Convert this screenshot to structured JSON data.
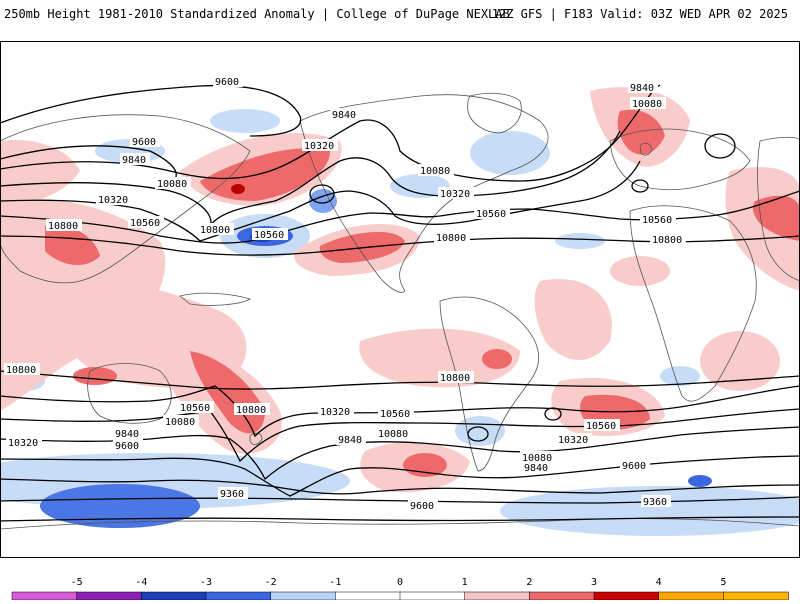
{
  "header": {
    "title_left": "250mb Height 1981-2010 Standardized Anomaly | College of DuPage NEXLAB",
    "title_right": "12Z GFS | F183 Valid: 03Z WED APR 02 2025"
  },
  "map": {
    "land_color": "#ffffff",
    "coast_color": "#555555",
    "contour_color": "#000000",
    "contour_labels": [
      "9600",
      "9600",
      "9840",
      "9840",
      "9840",
      "10080",
      "10080",
      "10320",
      "10320",
      "10560",
      "10560",
      "10560",
      "10800",
      "10800",
      "10800",
      "10320",
      "10560",
      "10800",
      "10800",
      "10800",
      "10560",
      "10080",
      "10320",
      "10560",
      "10800",
      "10320",
      "10080",
      "9840",
      "10080",
      "9840",
      "9600",
      "9600",
      "9840",
      "9360",
      "9600",
      "9360",
      "10560",
      "10320",
      "10080"
    ]
  },
  "colorbar": {
    "ticks": [
      "-5",
      "-4",
      "-3",
      "-2",
      "-1",
      "0",
      "1",
      "2",
      "3",
      "4",
      "5"
    ],
    "colors": [
      "#d75ad7",
      "#8a1fb5",
      "#1a3fb8",
      "#3a66e0",
      "#b7d3f5",
      "#ffffff",
      "#ffffff",
      "#f6c4c4",
      "#ee6a6a",
      "#c80000",
      "#ffa500",
      "#ffb300"
    ]
  }
}
